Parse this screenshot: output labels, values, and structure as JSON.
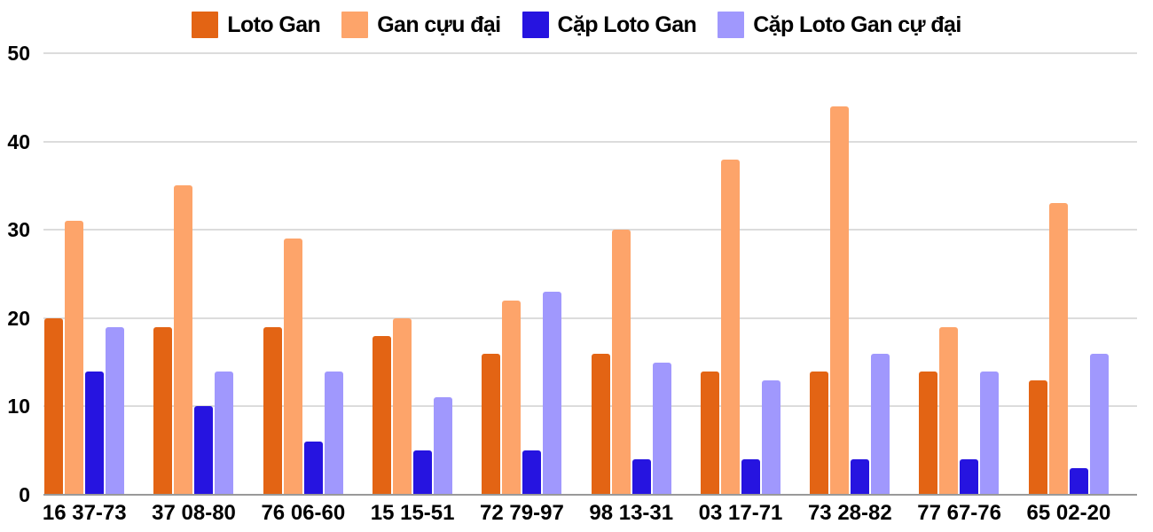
{
  "chart_data": {
    "type": "bar",
    "title": "",
    "xlabel": "",
    "ylabel": "",
    "ylim": [
      0,
      50
    ],
    "yticks": [
      0,
      10,
      20,
      30,
      40,
      50
    ],
    "grid": true,
    "legend_position": "top",
    "categories": [
      "16 37-73",
      "37 08-80",
      "76 06-60",
      "15 15-51",
      "72 79-97",
      "98 13-31",
      "03 17-71",
      "73 28-82",
      "77 67-76",
      "65 02-20"
    ],
    "series": [
      {
        "name": "Loto Gan",
        "color": "#e36414",
        "values": [
          20,
          19,
          19,
          18,
          16,
          16,
          14,
          14,
          14,
          13
        ]
      },
      {
        "name": "Gan cựu đại",
        "color": "#fda46a",
        "values": [
          31,
          35,
          29,
          20,
          22,
          30,
          38,
          44,
          19,
          33
        ]
      },
      {
        "name": "Cặp Loto Gan",
        "color": "#2614e0",
        "values": [
          14,
          10,
          6,
          5,
          5,
          4,
          4,
          4,
          4,
          3
        ]
      },
      {
        "name": "Cặp Loto Gan cự đại",
        "color": "#a098fd",
        "values": [
          19,
          14,
          14,
          11,
          23,
          15,
          13,
          16,
          14,
          16
        ]
      }
    ]
  },
  "legend": {
    "items": [
      {
        "label": "Loto Gan",
        "color": "#e36414"
      },
      {
        "label": "Gan cựu đại",
        "color": "#fda46a"
      },
      {
        "label": "Cặp Loto Gan",
        "color": "#2614e0"
      },
      {
        "label": "Cặp Loto Gan cự đại",
        "color": "#a098fd"
      }
    ]
  },
  "axis": {
    "y_labels": [
      "50",
      "40",
      "30",
      "20",
      "10",
      "0"
    ]
  }
}
